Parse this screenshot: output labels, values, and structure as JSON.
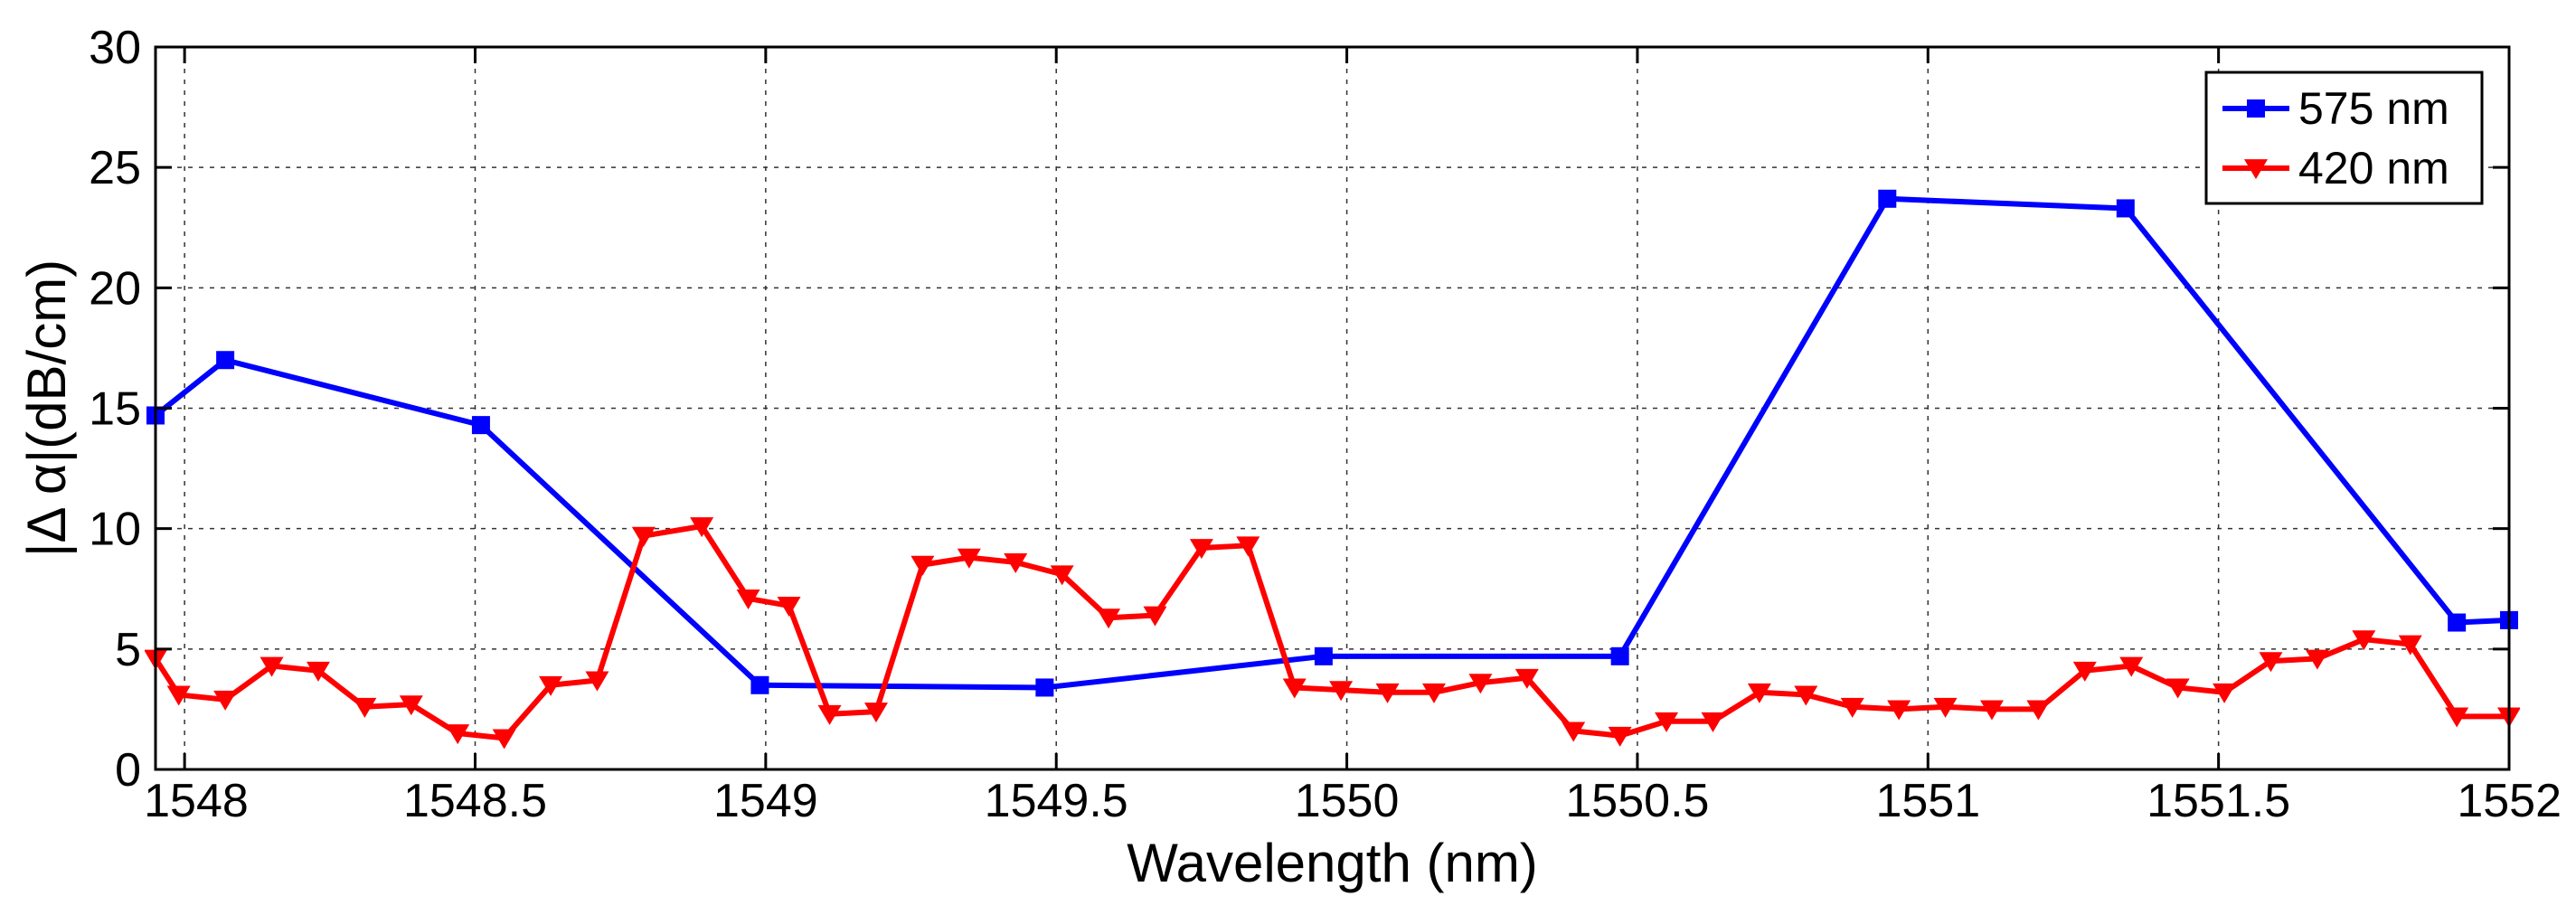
{
  "chart_data": {
    "type": "line",
    "title": "",
    "xlabel": "Wavelength (nm)",
    "ylabel": "|Δ α|(dB/cm)",
    "xlim": [
      1547.95,
      1552
    ],
    "ylim": [
      0,
      30
    ],
    "grid": true,
    "xticks": [
      1548,
      1548.5,
      1549,
      1549.5,
      1550,
      1550.5,
      1551,
      1551.5,
      1552
    ],
    "xtick_labels": [
      "1548",
      "1548.5",
      "1549",
      "1549.5",
      "1550",
      "1550.5",
      "1551",
      "1551.5",
      "1552"
    ],
    "yticks": [
      0,
      5,
      10,
      15,
      20,
      25,
      30
    ],
    "ytick_labels": [
      "0",
      "5",
      "10",
      "15",
      "20",
      "25",
      "30"
    ],
    "legend_position": "top-right",
    "series": [
      {
        "name": "575 nm",
        "color": "#0000ff",
        "marker": "square",
        "x": [
          1547.95,
          1548.07,
          1548.51,
          1548.99,
          1549.48,
          1549.96,
          1550.47,
          1550.93,
          1551.34,
          1551.91,
          1552.0
        ],
        "y": [
          14.7,
          17.0,
          14.3,
          3.5,
          3.4,
          4.7,
          4.7,
          23.7,
          23.3,
          6.1,
          6.2
        ]
      },
      {
        "name": "420 nm",
        "color": "#ff0000",
        "marker": "triangle-down",
        "x": [
          1547.95,
          1547.99,
          1548.07,
          1548.15,
          1548.23,
          1548.31,
          1548.39,
          1548.47,
          1548.55,
          1548.63,
          1548.71,
          1548.79,
          1548.89,
          1548.97,
          1549.04,
          1549.11,
          1549.19,
          1549.27,
          1549.35,
          1549.43,
          1549.51,
          1549.59,
          1549.67,
          1549.75,
          1549.83,
          1549.91,
          1549.99,
          1550.07,
          1550.15,
          1550.23,
          1550.31,
          1550.39,
          1550.47,
          1550.55,
          1550.63,
          1550.71,
          1550.79,
          1550.87,
          1550.95,
          1551.03,
          1551.11,
          1551.19,
          1551.27,
          1551.35,
          1551.43,
          1551.51,
          1551.59,
          1551.67,
          1551.75,
          1551.83,
          1551.91,
          1552.0
        ],
        "y": [
          4.6,
          3.1,
          2.9,
          4.3,
          4.1,
          2.6,
          2.7,
          1.5,
          1.3,
          3.5,
          3.7,
          9.7,
          10.1,
          7.1,
          6.8,
          2.3,
          2.4,
          8.5,
          8.8,
          8.6,
          8.1,
          6.3,
          6.4,
          9.2,
          9.3,
          3.4,
          3.3,
          3.2,
          3.2,
          3.6,
          3.8,
          1.6,
          1.4,
          2.0,
          2.0,
          3.2,
          3.1,
          2.6,
          2.5,
          2.6,
          2.5,
          2.5,
          4.1,
          4.3,
          3.4,
          3.2,
          4.5,
          4.6,
          5.4,
          5.2,
          2.2,
          2.2
        ]
      }
    ]
  }
}
